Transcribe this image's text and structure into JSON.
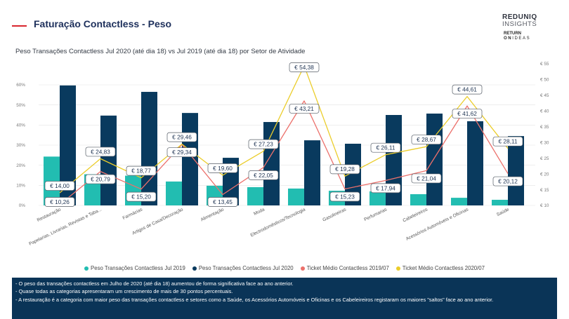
{
  "header": {
    "title": "Faturação Contactless - Peso",
    "accent_color": "#d9262e",
    "title_color": "#1d2f5b"
  },
  "logo": {
    "brand": "REDUNIQ",
    "brand_sub": "INSIGHTS",
    "tagline_top": "RETURN",
    "tagline_on": "ON",
    "tagline_ideas": "IDEAS"
  },
  "chart_data": {
    "type": "bar",
    "title": "Peso Transações Contactless Jul 2020 (até dia 18) vs Jul 2019 (até dia 18) por Setor de Atividade",
    "categories": [
      "Restauração",
      "Papelarias, Livrarias, Revistas e Taba...",
      "Farmácias",
      "Artigos de Casa/Decoração",
      "Alimentação",
      "Moda",
      "Electrodomésticos/Tecnologia",
      "Gasolineiras",
      "Perfumarias",
      "Cabeleireiros",
      "Acessórios Automóveis e Oficinas",
      "Saúde"
    ],
    "series": [
      {
        "name": "Peso Transações Contactless Jul 2019",
        "type": "bar",
        "axis": "left",
        "color": "#22bdb1",
        "values": [
          24.3,
          15.5,
          14.8,
          11.9,
          9.8,
          9.1,
          8.4,
          7.3,
          7.0,
          5.6,
          3.8,
          2.8
        ]
      },
      {
        "name": "Peso Transações Contactless Jul 2020",
        "type": "bar",
        "axis": "left",
        "color": "#093a5e",
        "values": [
          59.7,
          44.7,
          56.5,
          46.0,
          23.7,
          41.5,
          32.4,
          30.7,
          45.0,
          45.7,
          41.9,
          34.5
        ]
      },
      {
        "name": "Ticket Médio Contactless 2019/07",
        "type": "line",
        "axis": "right",
        "color": "#ec706b",
        "values": [
          10.26,
          20.79,
          15.2,
          29.34,
          13.45,
          22.05,
          43.21,
          15.23,
          17.94,
          21.04,
          41.62,
          20.12
        ],
        "labels": [
          "€ 10,26",
          "€ 20,79",
          "€ 15,20",
          "€ 29,34",
          "€ 13,45",
          "€ 22,05",
          "€ 43,21",
          "€ 15,23",
          "€ 17,94",
          "€ 21,04",
          "€ 41,62",
          "€ 20,12"
        ]
      },
      {
        "name": "Ticket Médio Contactless 2020/07",
        "type": "line",
        "axis": "right",
        "color": "#ebcd2a",
        "values": [
          14.0,
          24.83,
          18.77,
          29.46,
          19.6,
          27.23,
          54.38,
          19.28,
          26.11,
          28.67,
          44.61,
          28.11
        ],
        "labels": [
          "€ 14,00",
          "€ 24,83",
          "€ 18,77",
          "€ 29,46",
          "€ 19,60",
          "€ 27,23",
          "€ 54,38",
          "€ 19,28",
          "€ 26,11",
          "€ 28,67",
          "€ 44,61",
          "€ 28,11"
        ]
      }
    ],
    "y_left": {
      "range": [
        0,
        60
      ],
      "ticks": [
        0,
        10,
        20,
        30,
        40,
        50,
        60
      ],
      "tick_labels": [
        "0%",
        "10%",
        "20%",
        "30%",
        "40%",
        "50%",
        "60%"
      ]
    },
    "y_right": {
      "range": [
        10,
        55
      ],
      "ticks": [
        10,
        15,
        20,
        25,
        30,
        35,
        40,
        45,
        50,
        55
      ],
      "tick_labels": [
        "€ 10",
        "€ 15",
        "€ 20",
        "€ 25",
        "€ 30",
        "€ 35",
        "€ 40",
        "€ 45",
        "€ 50",
        "€ 55"
      ]
    },
    "grid": true,
    "legend_position": "bottom"
  },
  "notes_panel": {
    "background": "#0a3457",
    "lines": [
      "- O peso das transações contactless em Julho de 2020 (até dia 18) aumentou de forma significativa face ao ano anterior.",
      "- Quase todas as categorias apresentaram um crescimento de mais de 30 pontos percentuais.",
      "- A restauração é a categoria com maior peso das transações contactless e setores como a Saúde, os Acessórios Automóveis e Oficinas e os Cabeleireiros registaram os maiores \"saltos\" face ao ano anterior."
    ]
  }
}
